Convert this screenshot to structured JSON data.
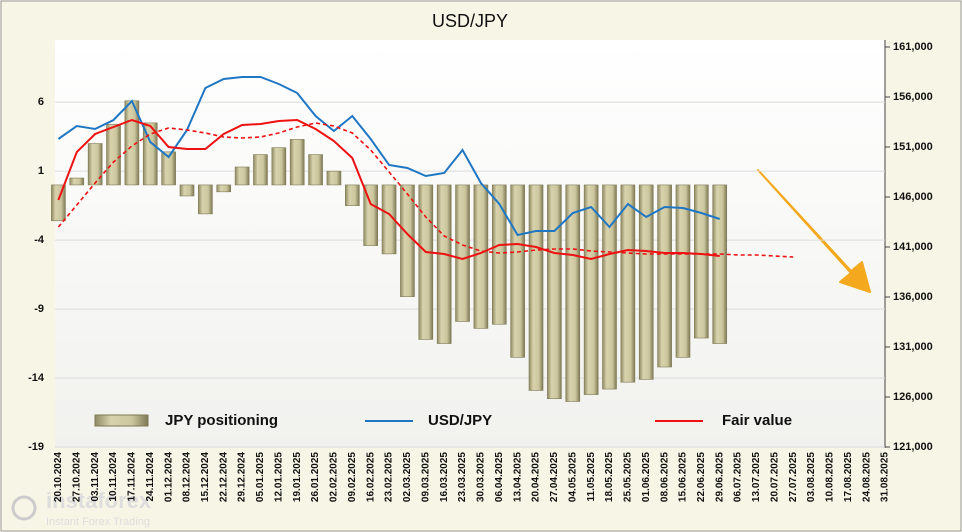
{
  "chart_data": {
    "type": "bar",
    "title": "USD/JPY",
    "categories": [
      "20.10.2024",
      "27.10.2024",
      "03.11.2024",
      "10.11.2024",
      "17.11.2024",
      "24.11.2024",
      "01.12.2024",
      "08.12.2024",
      "15.12.2024",
      "22.12.2024",
      "29.12.2024",
      "05.01.2025",
      "12.01.2025",
      "19.01.2025",
      "26.01.2025",
      "02.02.2025",
      "09.02.2025",
      "16.02.2025",
      "23.02.2025",
      "02.03.2025",
      "09.03.2025",
      "16.03.2025",
      "23.03.2025",
      "30.03.2025",
      "06.04.2025",
      "13.04.2025",
      "20.04.2025",
      "27.04.2025",
      "04.05.2025",
      "11.05.2025",
      "18.05.2025",
      "25.05.2025",
      "01.06.2025",
      "08.06.2025",
      "15.06.2025",
      "22.06.2025",
      "29.06.2025",
      "06.07.2025",
      "13.07.2025",
      "20.07.2025",
      "27.07.2025",
      "03.08.2025",
      "10.08.2025",
      "17.08.2025",
      "24.08.2025",
      "31.08.2025"
    ],
    "series": [
      {
        "name": "JPY positioning",
        "type": "bar",
        "color": "#c9c49b",
        "values": [
          -2.6,
          0.5,
          3.0,
          4.4,
          6.1,
          4.5,
          2.4,
          -0.8,
          -2.1,
          -0.5,
          1.3,
          2.2,
          2.7,
          3.3,
          2.2,
          1.0,
          -1.5,
          -4.4,
          -5.0,
          -8.1,
          -11.2,
          -11.5,
          -9.9,
          -10.4,
          -10.1,
          -12.5,
          -14.9,
          -15.5,
          -15.7,
          -15.2,
          -14.8,
          -14.3,
          -14.1,
          -13.2,
          -12.5,
          -11.1,
          -11.5,
          null,
          null,
          null,
          null,
          null,
          null,
          null,
          null,
          null
        ]
      },
      {
        "name": "USD/JPY",
        "type": "line",
        "axis": "y2",
        "color": "#1f77c4",
        "values": [
          151800,
          153100,
          152800,
          153700,
          155600,
          151500,
          150000,
          152700,
          156900,
          157800,
          158000,
          158000,
          157300,
          156400,
          154100,
          152600,
          154100,
          151800,
          149200,
          148900,
          148100,
          148400,
          150700,
          147400,
          145300,
          142200,
          142600,
          142600,
          144400,
          145000,
          143000,
          145300,
          144000,
          145000,
          144900,
          144400,
          143800,
          null,
          null,
          null,
          null,
          null,
          null,
          null,
          null,
          null
        ]
      },
      {
        "name": "Fair value",
        "type": "line",
        "axis": "y2",
        "color": "#ee1111",
        "values": [
          145700,
          150500,
          152300,
          153000,
          153700,
          153100,
          151000,
          150800,
          150800,
          152300,
          153200,
          153300,
          153600,
          153700,
          152800,
          151600,
          149900,
          145300,
          144300,
          142300,
          140500,
          140300,
          139800,
          140400,
          141200,
          141300,
          141000,
          140400,
          140200,
          139800,
          140300,
          140700,
          140600,
          140400,
          140400,
          140300,
          140100,
          null,
          null,
          null,
          null,
          null,
          null,
          null,
          null,
          null
        ]
      },
      {
        "type": "line",
        "axis": "y2",
        "dashed": true,
        "color": "#ee1111",
        "values": [
          143000,
          145200,
          147400,
          149500,
          151100,
          152300,
          152900,
          152700,
          152400,
          152000,
          151900,
          152000,
          152400,
          153000,
          153400,
          153100,
          152400,
          150700,
          148500,
          146300,
          144000,
          142100,
          141200,
          140600,
          140400,
          140500,
          140700,
          140800,
          140800,
          140600,
          140500,
          140400,
          140300,
          140300,
          140300,
          140300,
          140300,
          140200,
          140200,
          140100,
          140000,
          null,
          null,
          null,
          null,
          null
        ]
      }
    ],
    "ylim": [
      -19,
      10
    ],
    "yticks": [
      6,
      1,
      -4,
      -9,
      -14,
      -19
    ],
    "y2lim": [
      121000,
      161000
    ],
    "y2ticks": [
      {
        "value": 161000,
        "label": "161,000"
      },
      {
        "value": 156000,
        "label": "156,000"
      },
      {
        "value": 151000,
        "label": "151,000"
      },
      {
        "value": 146000,
        "label": "146,000"
      },
      {
        "value": 141000,
        "label": "141,000"
      },
      {
        "value": 136000,
        "label": "136,000"
      },
      {
        "value": 131000,
        "label": "131,000"
      },
      {
        "value": 126000,
        "label": "126,000"
      },
      {
        "value": 121000,
        "label": "121,000"
      }
    ],
    "grid": true
  },
  "watermark": {
    "brand": "instaforex",
    "tagline": "Instant Forex Trading"
  }
}
